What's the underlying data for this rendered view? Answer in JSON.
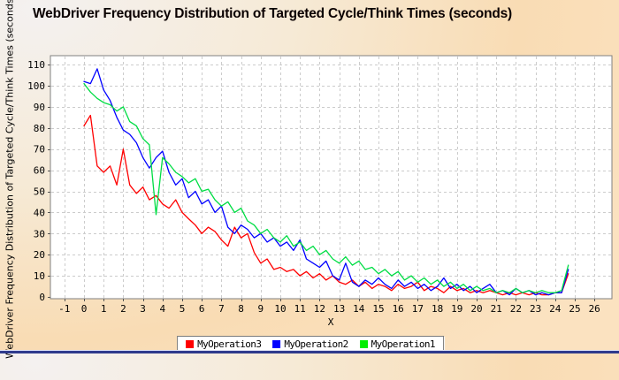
{
  "title": "WebDriver Frequency Distribution of Targeted Cycle/Think Times (seconds)",
  "axes": {
    "x_label": "X",
    "y_label": "WebDriver Frequency Distribution of Targeted Cycle/Think Times (seconds)"
  },
  "legend": {
    "items": [
      {
        "label": "MyOperation3",
        "color": "#ff0000"
      },
      {
        "label": "MyOperation2",
        "color": "#0000ff"
      },
      {
        "label": "MyOperation1",
        "color": "#00ee00"
      }
    ]
  },
  "colors": {
    "grid": "#cccccc",
    "plot_border": "#808080",
    "plot_background": "#ffffff",
    "bottom_bar": "#2e3a8c"
  },
  "chart_data": {
    "type": "line",
    "title": "WebDriver Frequency Distribution of Targeted Cycle/Think Times (seconds)",
    "xlabel": "X",
    "ylabel": "WebDriver Frequency Distribution of Targeted Cycle/Think Times (seconds)",
    "xlim": [
      -1.7,
      26.9
    ],
    "ylim": [
      0,
      114
    ],
    "xticks": [
      -1,
      0,
      1,
      2,
      3,
      4,
      5,
      6,
      7,
      8,
      9,
      10,
      11,
      12,
      13,
      14,
      15,
      16,
      17,
      18,
      19,
      20,
      21,
      22,
      23,
      24,
      25,
      26
    ],
    "yticks": [
      0,
      10,
      20,
      30,
      40,
      50,
      60,
      70,
      80,
      90,
      100,
      110
    ],
    "grid": true,
    "grid_style": "dashed",
    "legend_position": "bottom-center",
    "x": [
      0,
      0.33,
      0.67,
      1,
      1.33,
      1.67,
      2,
      2.33,
      2.67,
      3,
      3.33,
      3.67,
      4,
      4.33,
      4.67,
      5,
      5.33,
      5.67,
      6,
      6.33,
      6.67,
      7,
      7.33,
      7.67,
      8,
      8.33,
      8.67,
      9,
      9.33,
      9.67,
      10,
      10.33,
      10.67,
      11,
      11.33,
      11.67,
      12,
      12.33,
      12.67,
      13,
      13.33,
      13.67,
      14,
      14.33,
      14.67,
      15,
      15.33,
      15.67,
      16,
      16.33,
      16.67,
      17,
      17.33,
      17.67,
      18,
      18.33,
      18.67,
      19,
      19.33,
      19.67,
      20,
      20.33,
      20.67,
      21,
      21.33,
      21.67,
      22,
      22.33,
      22.67,
      23,
      23.33,
      23.67,
      24,
      24.33,
      24.67
    ],
    "series": [
      {
        "name": "MyOperation3",
        "color": "#ff0000",
        "values": [
          81,
          86,
          62,
          59,
          62,
          53,
          70,
          53,
          49,
          52,
          46,
          48,
          44,
          42,
          46,
          40,
          37,
          34,
          30,
          33,
          31,
          27,
          24,
          33,
          28,
          30,
          21,
          16,
          18,
          13,
          14,
          12,
          13,
          10,
          12,
          9,
          11,
          8,
          10,
          7,
          6,
          8,
          5,
          7,
          4,
          6,
          5,
          3,
          6,
          4,
          5,
          7,
          3,
          5,
          4,
          2,
          5,
          3,
          4,
          2,
          3,
          2,
          3,
          2,
          1,
          2,
          1,
          2,
          1,
          2,
          1,
          1,
          2,
          2,
          11
        ]
      },
      {
        "name": "MyOperation2",
        "color": "#0000ff",
        "values": [
          102,
          101,
          108,
          98,
          93,
          85,
          79,
          77,
          73,
          66,
          61,
          66,
          69,
          59,
          53,
          56,
          47,
          50,
          44,
          46,
          40,
          43,
          33,
          30,
          34,
          32,
          28,
          30,
          26,
          28,
          24,
          26,
          22,
          27,
          18,
          16,
          14,
          17,
          10,
          8,
          16,
          7,
          5,
          8,
          6,
          9,
          6,
          4,
          8,
          5,
          7,
          4,
          6,
          3,
          5,
          9,
          4,
          6,
          3,
          5,
          2,
          4,
          6,
          2,
          3,
          1,
          4,
          2,
          3,
          1,
          2,
          1,
          2,
          2,
          13
        ]
      },
      {
        "name": "MyOperation1",
        "color": "#00dd44",
        "values": [
          101,
          97,
          94,
          92,
          91,
          88,
          90,
          83,
          81,
          75,
          72,
          39,
          66,
          63,
          59,
          57,
          54,
          56,
          50,
          51,
          46,
          43,
          45,
          40,
          42,
          36,
          34,
          30,
          32,
          28,
          26,
          29,
          24,
          26,
          22,
          24,
          20,
          22,
          18,
          16,
          19,
          15,
          17,
          13,
          14,
          11,
          13,
          10,
          12,
          8,
          10,
          7,
          9,
          6,
          8,
          5,
          7,
          4,
          6,
          3,
          5,
          3,
          4,
          2,
          3,
          2,
          4,
          2,
          3,
          2,
          3,
          2,
          2,
          3,
          15
        ]
      }
    ]
  }
}
